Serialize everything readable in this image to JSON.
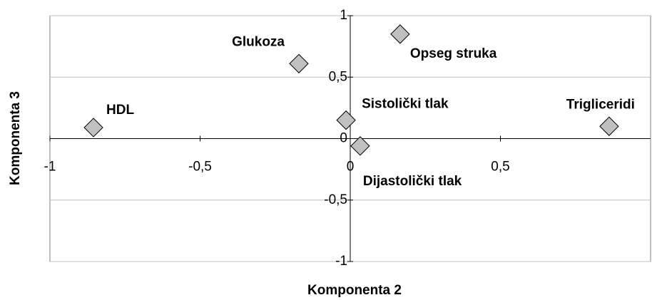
{
  "chart_data": {
    "type": "scatter",
    "xlabel": "Komponenta 2",
    "ylabel": "Komponenta 3",
    "labels": [
      "HDL",
      "Glukoza",
      "Opseg struka",
      "Sistolički tlak",
      "Dijastolički tlak",
      "Trigliceridi"
    ],
    "x": [
      -0.855,
      -0.171,
      0.166,
      -0.014,
      0.033,
      0.862
    ],
    "y": [
      0.09,
      0.61,
      0.85,
      0.15,
      -0.06,
      0.1
    ],
    "color": "#c0c0c0",
    "xlim": [
      -1,
      1
    ],
    "ylim": [
      -1,
      1
    ],
    "xticks": [
      -1,
      {
        "value": -0.5,
        "label": "-0,5"
      },
      0,
      {
        "value": 0.5,
        "label": "0,5"
      }
    ],
    "yticks": [
      -1,
      {
        "value": -0.5,
        "label": "-0,5"
      },
      0,
      {
        "value": 0.5,
        "label": "0,5"
      },
      1
    ],
    "grid": true
  }
}
